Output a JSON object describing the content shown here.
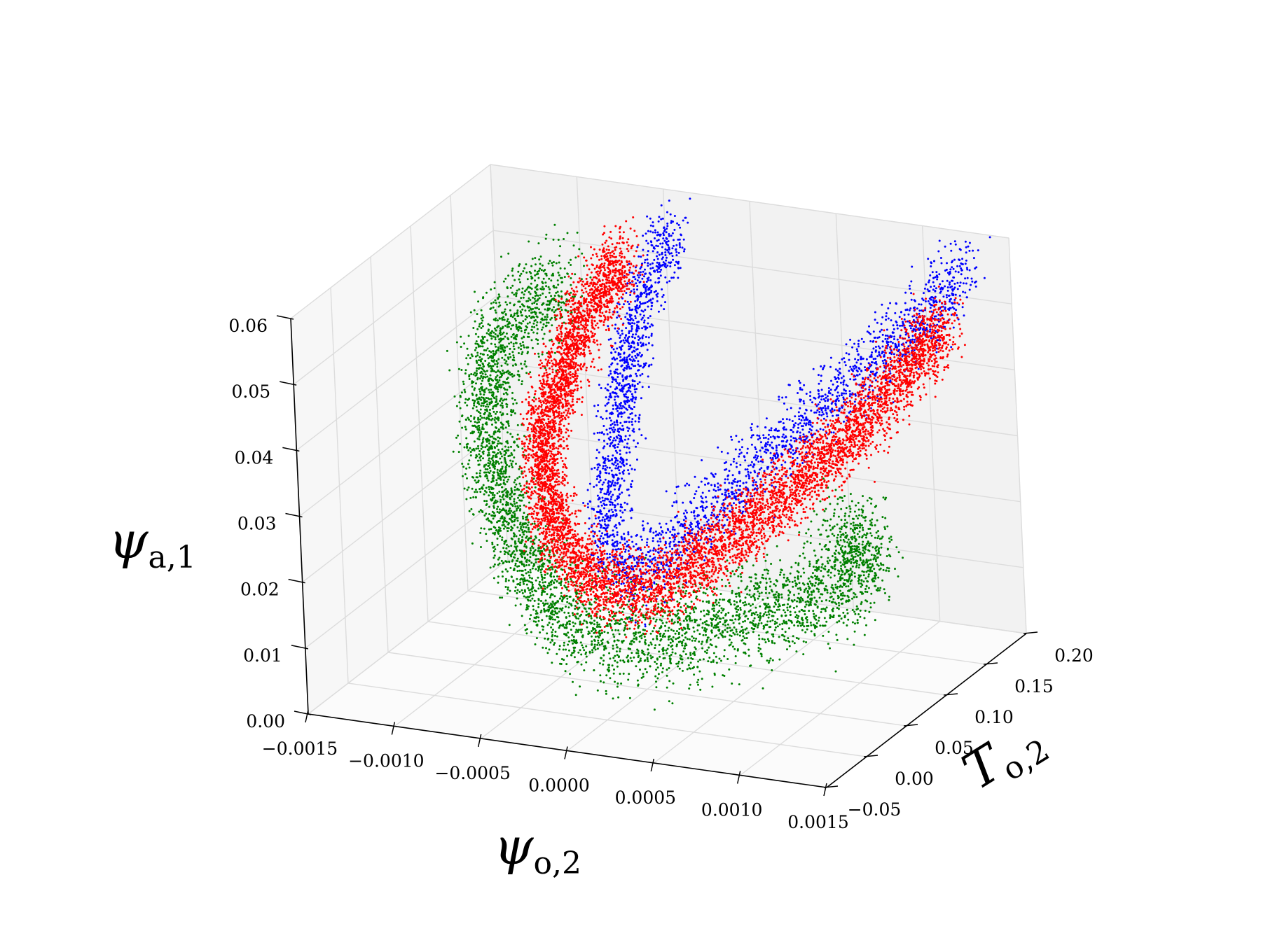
{
  "chart_data": {
    "type": "scatter",
    "projection": "3d",
    "title": "",
    "xlabel": {
      "symbol": "ψ",
      "subscript": "o,2"
    },
    "ylabel": {
      "symbol": "T",
      "subscript": "o,2"
    },
    "zlabel": {
      "symbol": "ψ",
      "subscript": "a,1"
    },
    "xlim": [
      -0.0015,
      0.0015
    ],
    "ylim": [
      -0.05,
      0.2
    ],
    "zlim": [
      0.0,
      0.06
    ],
    "x_ticks": [
      -0.0015,
      -0.001,
      -0.0005,
      0.0,
      0.0005,
      0.001,
      0.0015
    ],
    "x_tick_labels": [
      "−0.0015",
      "−0.0010",
      "−0.0005",
      "0.0000",
      "0.0005",
      "0.0010",
      "0.0015"
    ],
    "y_ticks": [
      -0.05,
      0.0,
      0.05,
      0.1,
      0.15,
      0.2
    ],
    "y_tick_labels": [
      "−0.05",
      "0.00",
      "0.05",
      "0.10",
      "0.15",
      "0.20"
    ],
    "z_ticks": [
      0.0,
      0.01,
      0.02,
      0.03,
      0.04,
      0.05,
      0.06
    ],
    "z_tick_labels": [
      "0.00",
      "0.01",
      "0.02",
      "0.03",
      "0.04",
      "0.05",
      "0.06"
    ],
    "grid": true,
    "legend": "none",
    "series": [
      {
        "color": "#008000",
        "points": 4500,
        "spread": 1.35,
        "points_xyz": [
          [
            -0.00095,
            0.17,
            0.046
          ],
          [
            -0.0011,
            0.14,
            0.044
          ],
          [
            -0.0011,
            0.1,
            0.04
          ],
          [
            -0.0009,
            0.06,
            0.03
          ],
          [
            -0.0006,
            0.03,
            0.02
          ],
          [
            -0.0003,
            0.02,
            0.012
          ],
          [
            0.0,
            0.02,
            0.01
          ],
          [
            0.0004,
            0.03,
            0.012
          ],
          [
            0.0008,
            0.04,
            0.016
          ],
          [
            0.0012,
            0.05,
            0.02
          ],
          [
            0.0014,
            0.04,
            0.026
          ],
          [
            0.0012,
            0.03,
            0.03
          ]
        ]
      },
      {
        "color": "#0000ff",
        "points": 3000,
        "spread": 1.0,
        "points_xyz": [
          [
            -0.0004,
            0.19,
            0.055
          ],
          [
            -0.0004,
            0.15,
            0.05
          ],
          [
            -0.0003,
            0.09,
            0.035
          ],
          [
            -0.0002,
            0.05,
            0.022
          ],
          [
            0.0,
            0.04,
            0.018
          ],
          [
            0.0004,
            0.06,
            0.028
          ],
          [
            0.0008,
            0.09,
            0.04
          ],
          [
            0.0012,
            0.13,
            0.05
          ],
          [
            0.0014,
            0.17,
            0.058
          ]
        ]
      },
      {
        "color": "#ff0000",
        "points": 7000,
        "spread": 1.0,
        "points_xyz": [
          [
            -0.0006,
            0.17,
            0.052
          ],
          [
            -0.0007,
            0.13,
            0.045
          ],
          [
            -0.0007,
            0.08,
            0.032
          ],
          [
            -0.0005,
            0.05,
            0.022
          ],
          [
            -0.0002,
            0.04,
            0.016
          ],
          [
            0.0001,
            0.04,
            0.016
          ],
          [
            0.0005,
            0.06,
            0.024
          ],
          [
            0.0009,
            0.08,
            0.034
          ],
          [
            0.0012,
            0.11,
            0.044
          ],
          [
            0.0014,
            0.14,
            0.052
          ]
        ]
      }
    ]
  }
}
